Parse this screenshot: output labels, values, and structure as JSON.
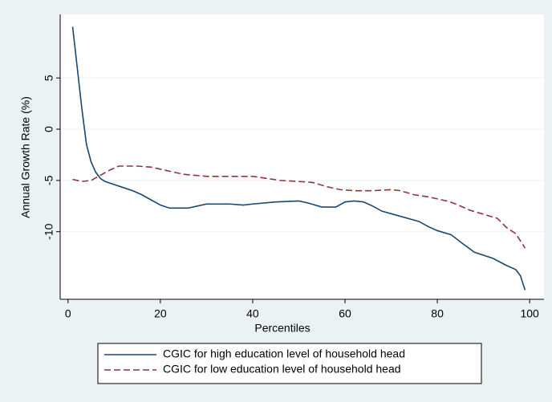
{
  "chart_data": {
    "type": "line",
    "x_label": "Percentiles",
    "y_label": "Annual Growth Rate (%)",
    "xlim": [
      -1.7,
      103.1
    ],
    "ylim": [
      -16.6,
      11.2
    ],
    "xticks": [
      0,
      20,
      40,
      60,
      80,
      100
    ],
    "yticks": [
      5,
      0,
      -5,
      -10
    ],
    "grid": true,
    "legend": "bottom",
    "series": [
      {
        "name": "CGIC for high education level of household head",
        "color": "#1a476f",
        "dash": "solid",
        "x": [
          1,
          2,
          3,
          4,
          5,
          6,
          7,
          8,
          10,
          12,
          14,
          16,
          18,
          20,
          22,
          24,
          26,
          28,
          30,
          35,
          38,
          40,
          45,
          50,
          52,
          55,
          58,
          60,
          62,
          64,
          66,
          68,
          72,
          76,
          78,
          80,
          83,
          85,
          88,
          92,
          95,
          97,
          98,
          99
        ],
        "values": [
          10,
          6,
          2,
          -1.5,
          -3.2,
          -4.2,
          -4.8,
          -5.1,
          -5.4,
          -5.7,
          -6,
          -6.4,
          -6.9,
          -7.4,
          -7.7,
          -7.7,
          -7.7,
          -7.5,
          -7.3,
          -7.3,
          -7.4,
          -7.3,
          -7.1,
          -7.0,
          -7.2,
          -7.6,
          -7.6,
          -7.1,
          -7.0,
          -7.1,
          -7.5,
          -8.0,
          -8.5,
          -9.0,
          -9.5,
          -9.9,
          -10.3,
          -11,
          -12,
          -12.6,
          -13.3,
          -13.7,
          -14.3,
          -15.7
        ]
      },
      {
        "name": "CGIC for low education level of household head",
        "color": "#90353b",
        "dash": "dashed",
        "x": [
          1,
          3,
          5,
          7,
          9,
          11,
          15,
          18,
          22,
          25,
          30,
          35,
          40,
          43,
          46,
          50,
          53,
          56,
          59,
          62,
          66,
          70,
          72,
          75,
          78,
          82,
          84,
          87,
          90,
          93,
          95,
          97,
          99
        ],
        "values": [
          -4.9,
          -5.1,
          -5.0,
          -4.5,
          -4,
          -3.6,
          -3.6,
          -3.7,
          -4.1,
          -4.4,
          -4.6,
          -4.6,
          -4.6,
          -4.8,
          -5.0,
          -5.1,
          -5.2,
          -5.6,
          -5.9,
          -6.0,
          -6.0,
          -5.9,
          -6.0,
          -6.4,
          -6.6,
          -7.0,
          -7.3,
          -7.9,
          -8.3,
          -8.7,
          -9.6,
          -10.2,
          -11.6
        ]
      }
    ]
  }
}
